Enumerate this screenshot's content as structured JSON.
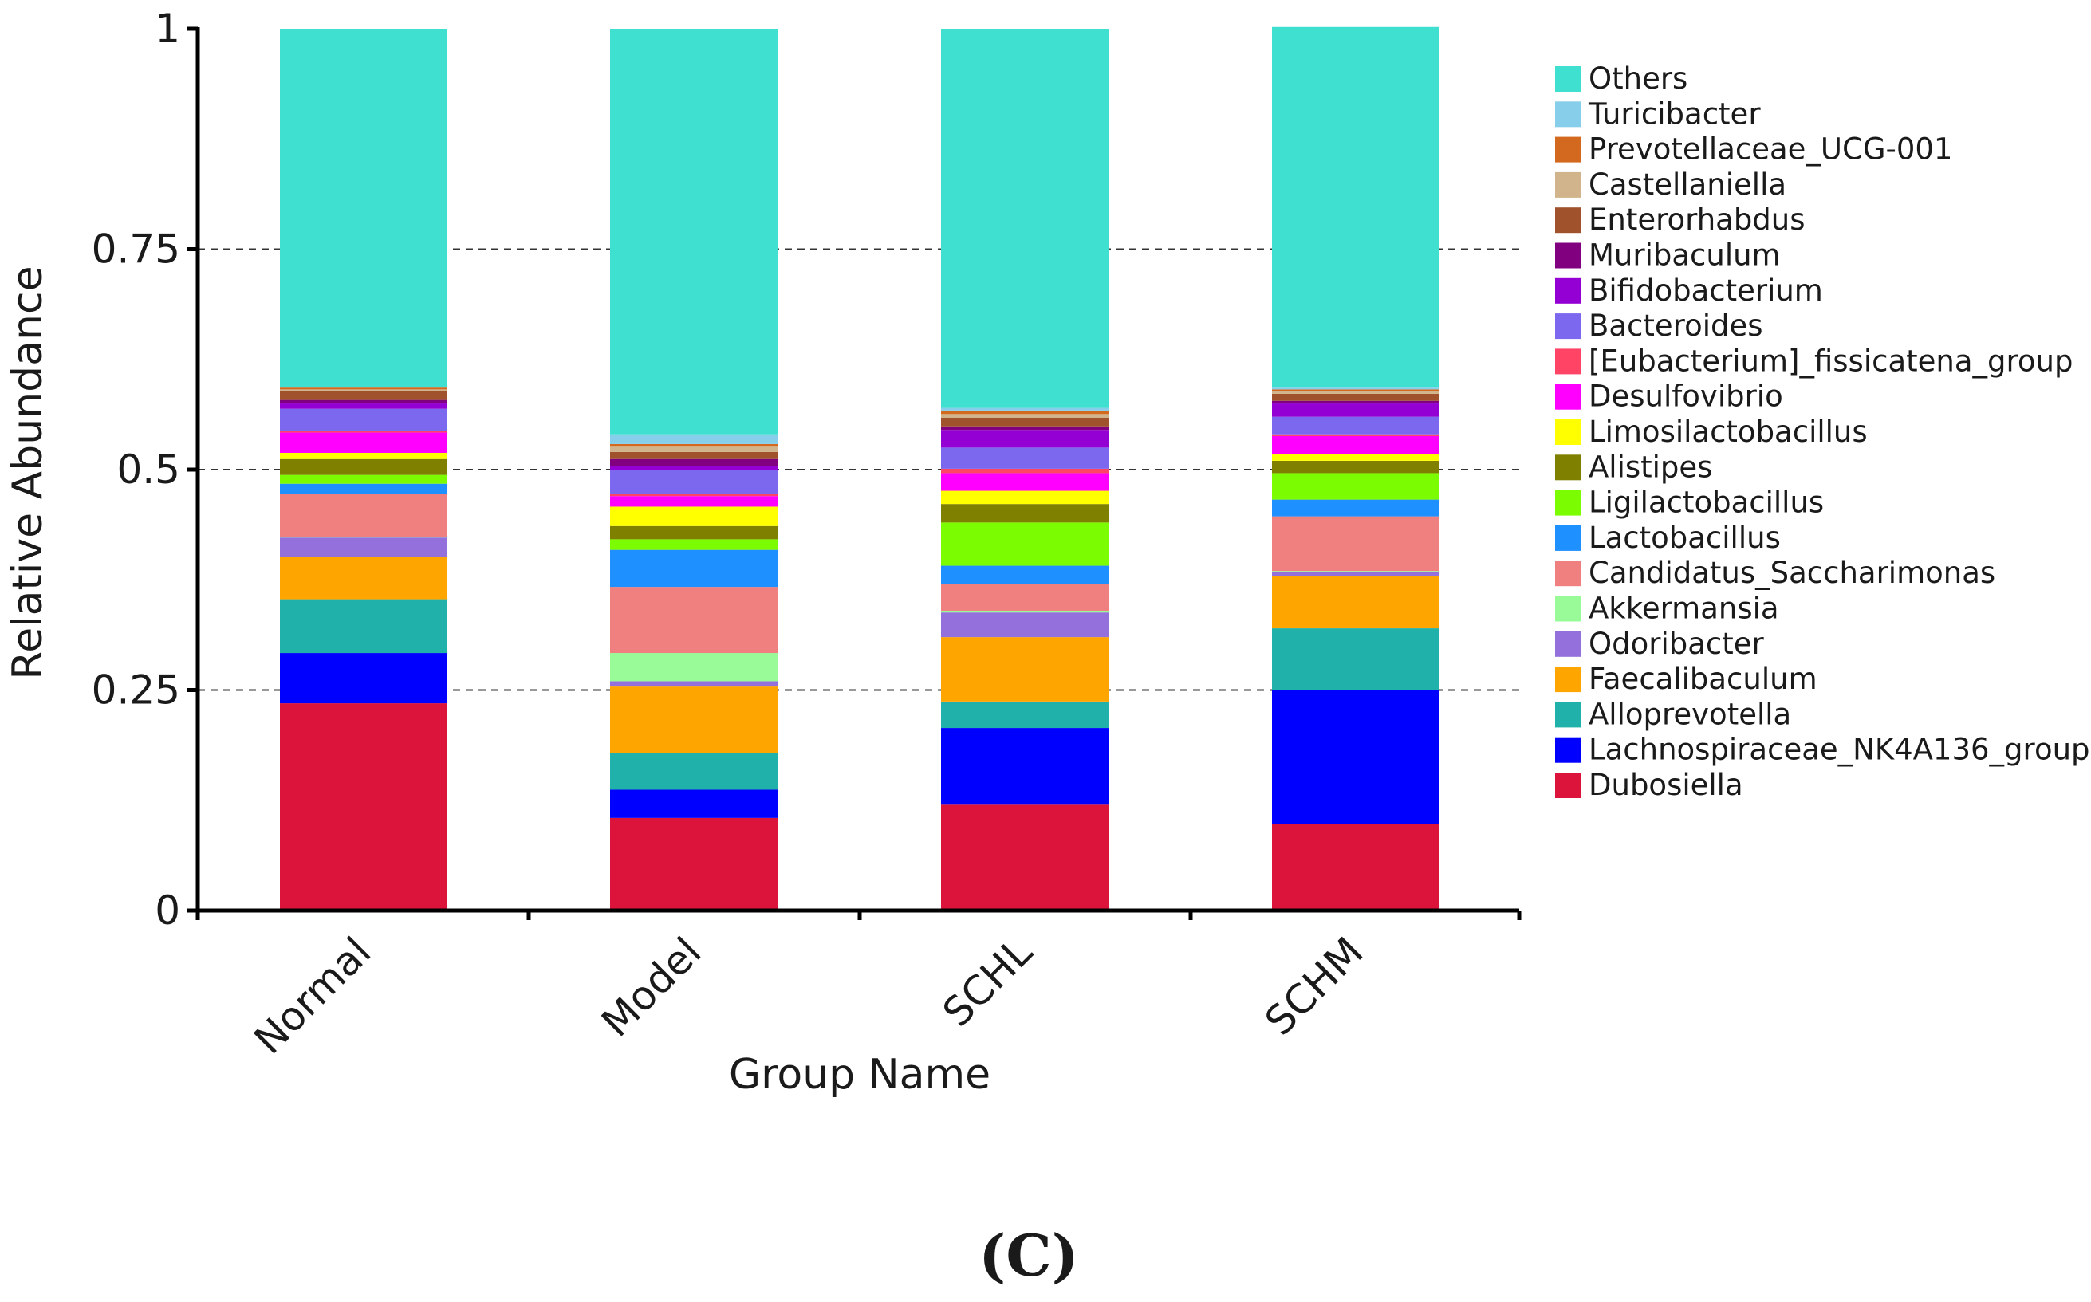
{
  "chart_data": {
    "type": "bar",
    "stacked": true,
    "title": "",
    "xlabel": "Group Name",
    "ylabel": "Relative Abundance",
    "ylim": [
      0,
      1
    ],
    "yticks": [
      0,
      0.25,
      0.5,
      0.75,
      1
    ],
    "ytick_labels": [
      "0",
      "0.25",
      "0.5",
      "0.75",
      "1"
    ],
    "grid": "dashed horizontal at 0.25, 0.5, 0.75",
    "legend_position": "right",
    "panel_label": "(C)",
    "categories": [
      "Normal",
      "Model",
      "SCHL",
      "SCHM"
    ],
    "series": [
      {
        "name": "Dubosiella",
        "color": "#dc143c",
        "values": [
          0.235,
          0.105,
          0.12,
          0.098
        ]
      },
      {
        "name": "Lachnospiraceae_NK4A136_group",
        "color": "#0000ff",
        "values": [
          0.057,
          0.032,
          0.087,
          0.152
        ]
      },
      {
        "name": "Alloprevotella",
        "color": "#20b2aa",
        "values": [
          0.061,
          0.042,
          0.03,
          0.07
        ]
      },
      {
        "name": "Faecalibaculum",
        "color": "#ffa500",
        "values": [
          0.048,
          0.075,
          0.073,
          0.059
        ]
      },
      {
        "name": "Odoribacter",
        "color": "#9370db",
        "values": [
          0.022,
          0.006,
          0.028,
          0.005
        ]
      },
      {
        "name": "Akkermansia",
        "color": "#98fb98",
        "values": [
          0.001,
          0.032,
          0.002,
          0.001
        ]
      },
      {
        "name": "Candidatus_Saccharimonas",
        "color": "#f08080",
        "values": [
          0.048,
          0.075,
          0.03,
          0.062
        ]
      },
      {
        "name": "Lactobacillus",
        "color": "#1e90ff",
        "values": [
          0.012,
          0.042,
          0.021,
          0.019
        ]
      },
      {
        "name": "Ligilactobacillus",
        "color": "#7cfc00",
        "values": [
          0.01,
          0.012,
          0.049,
          0.03
        ]
      },
      {
        "name": "Alistipes",
        "color": "#808000",
        "values": [
          0.018,
          0.015,
          0.021,
          0.014
        ]
      },
      {
        "name": "Limosilactobacillus",
        "color": "#ffff00",
        "values": [
          0.007,
          0.022,
          0.015,
          0.008
        ]
      },
      {
        "name": "Desulfovibrio",
        "color": "#ff00ff",
        "values": [
          0.023,
          0.012,
          0.02,
          0.02
        ]
      },
      {
        "name": "[Eubacterium]_fissicatena_group",
        "color": "#ff4466",
        "values": [
          0.002,
          0.002,
          0.005,
          0.002
        ]
      },
      {
        "name": "Bacteroides",
        "color": "#7b68ee",
        "values": [
          0.025,
          0.028,
          0.024,
          0.02
        ]
      },
      {
        "name": "Bifidobacterium",
        "color": "#9400d3",
        "values": [
          0.006,
          0.004,
          0.02,
          0.015
        ]
      },
      {
        "name": "Muribaculum",
        "color": "#800080",
        "values": [
          0.004,
          0.008,
          0.004,
          0.003
        ]
      },
      {
        "name": "Enterorhabdus",
        "color": "#a0522d",
        "values": [
          0.01,
          0.008,
          0.01,
          0.008
        ]
      },
      {
        "name": "Castellaniella",
        "color": "#d2b48c",
        "values": [
          0.002,
          0.006,
          0.004,
          0.003
        ]
      },
      {
        "name": "Prevotellaceae_UCG-001",
        "color": "#d2691e",
        "values": [
          0.002,
          0.003,
          0.004,
          0.002
        ]
      },
      {
        "name": "Turicibacter",
        "color": "#87ceeb",
        "values": [
          0.001,
          0.011,
          0.003,
          0.002
        ]
      },
      {
        "name": "Others",
        "color": "#40e0d0",
        "values": [
          0.406,
          0.46,
          0.43,
          0.409
        ]
      }
    ],
    "legend_order": [
      "Others",
      "Turicibacter",
      "Prevotellaceae_UCG-001",
      "Castellaniella",
      "Enterorhabdus",
      "Muribaculum",
      "Bifidobacterium",
      "Bacteroides",
      "[Eubacterium]_fissicatena_group",
      "Desulfovibrio",
      "Limosilactobacillus",
      "Alistipes",
      "Ligilactobacillus",
      "Lactobacillus",
      "Candidatus_Saccharimonas",
      "Akkermansia",
      "Odoribacter",
      "Faecalibaculum",
      "Alloprevotella",
      "Lachnospiraceae_NK4A136_group",
      "Dubosiella"
    ]
  }
}
